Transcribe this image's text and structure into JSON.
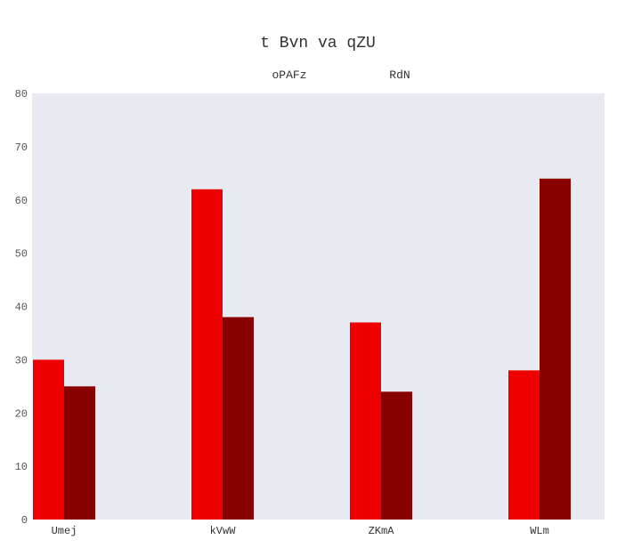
{
  "chart_data": {
    "type": "bar",
    "title": "t Bvn va qZU",
    "xlabel": "",
    "ylabel": "",
    "categories": [
      "Umej",
      "kVwW",
      "ZKmA",
      "WLm"
    ],
    "series": [
      {
        "name": "oPAFz",
        "color": "#ee0000",
        "values": [
          30,
          62,
          37,
          28
        ]
      },
      {
        "name": "RdN",
        "color": "#880000",
        "values": [
          25,
          38,
          24,
          64
        ]
      }
    ],
    "ylim": [
      0,
      80
    ],
    "yticks": [
      0,
      10,
      20,
      30,
      40,
      50,
      60,
      70,
      80
    ],
    "grid": false,
    "legend_position": "top-center",
    "plot_background": "#e9e9f2"
  }
}
